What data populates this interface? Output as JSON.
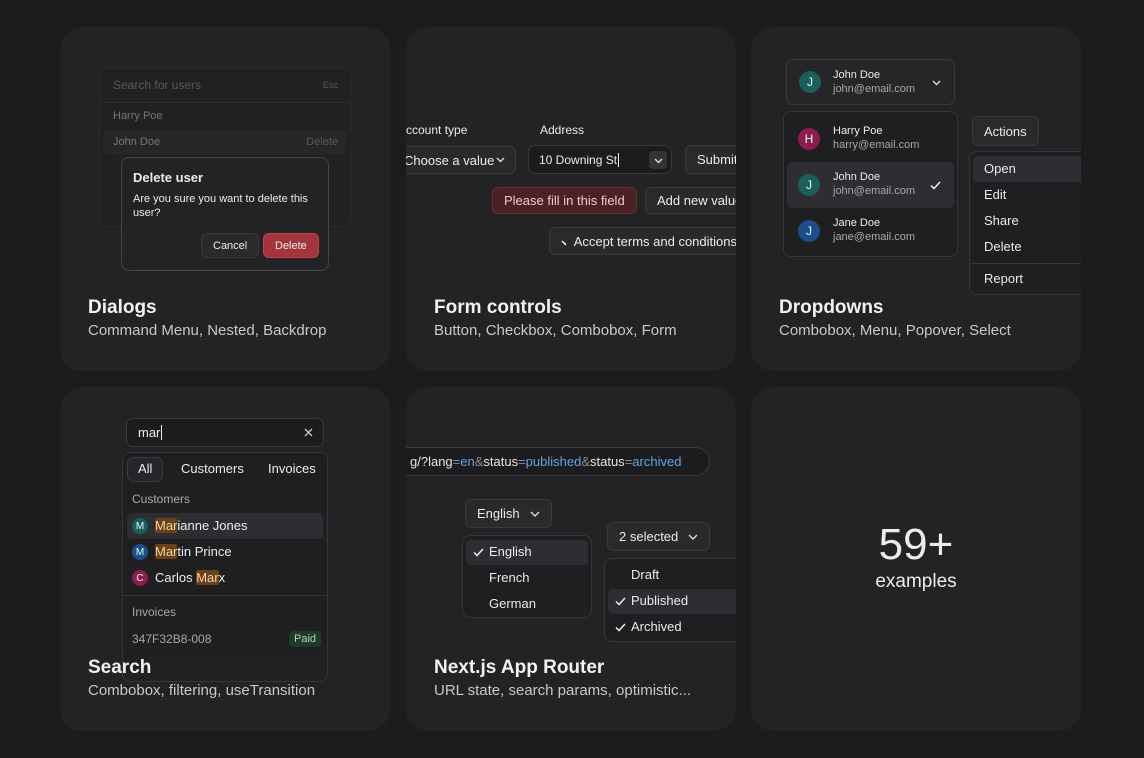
{
  "dialogs": {
    "title": "Dialogs",
    "subtitle": "Command Menu, Nested, Backdrop",
    "search_placeholder": "Search for users",
    "esc": "Esc",
    "users": [
      "Harry Poe",
      "John Doe"
    ],
    "row_action": "Delete",
    "dialog": {
      "title": "Delete user",
      "body": "Are you sure you want to delete this user?",
      "cancel": "Cancel",
      "confirm": "Delete"
    }
  },
  "forms": {
    "title": "Form controls",
    "subtitle": "Button, Checkbox, Combobox, Form",
    "account_label": "Account type",
    "account_placeholder": "Choose a value",
    "address_label": "Address",
    "address_value": "10 Downing St",
    "submit": "Submit",
    "error": "Please fill in this field",
    "add": "Add new value",
    "terms": "Accept terms and conditions"
  },
  "dropdowns": {
    "title": "Dropdowns",
    "subtitle": "Combobox, Menu, Popover, Select",
    "selected": {
      "initial": "J",
      "name": "John Doe",
      "email": "john@email.com"
    },
    "options": [
      {
        "initial": "H",
        "name": "Harry Poe",
        "email": "harry@email.com",
        "color": "#8b1e4e"
      },
      {
        "initial": "J",
        "name": "John Doe",
        "email": "john@email.com",
        "color": "#1b5e5a"
      },
      {
        "initial": "J",
        "name": "Jane Doe",
        "email": "jane@email.com",
        "color": "#1d4e89"
      }
    ],
    "actions": "Actions",
    "menu": [
      "Open",
      "Edit",
      "Share",
      "Delete",
      "Report"
    ]
  },
  "search": {
    "title": "Search",
    "subtitle": "Combobox, filtering, useTransition",
    "query": "mar",
    "tabs": [
      "All",
      "Customers",
      "Invoices"
    ],
    "customers_label": "Customers",
    "customers": [
      {
        "initial": "M",
        "parts": [
          "Mar",
          "ianne Jones"
        ],
        "hit": 0,
        "color": "#1b5e5a"
      },
      {
        "initial": "M",
        "parts": [
          "Mar",
          "tin Prince"
        ],
        "hit": 0,
        "color": "#1d4e89"
      },
      {
        "initial": "C",
        "parts": [
          "Carlos ",
          "Mar",
          "x"
        ],
        "hit": 1,
        "color": "#8b1e4e"
      }
    ],
    "invoices_label": "Invoices",
    "invoice": {
      "id": "347F32B8-008",
      "status": "Paid"
    }
  },
  "nextjs": {
    "title": "Next.js App Router",
    "subtitle": "URL state, search params, optimistic...",
    "url": [
      {
        "text": "g/?",
        "kind": "key"
      },
      {
        "text": "lang",
        "kind": "key"
      },
      {
        "text": "=",
        "kind": "sep"
      },
      {
        "text": "en",
        "kind": "val"
      },
      {
        "text": "&",
        "kind": "sep"
      },
      {
        "text": "status",
        "kind": "key"
      },
      {
        "text": "=",
        "kind": "sep"
      },
      {
        "text": "published",
        "kind": "val"
      },
      {
        "text": "&",
        "kind": "sep"
      },
      {
        "text": "status",
        "kind": "key"
      },
      {
        "text": "=",
        "kind": "sep"
      },
      {
        "text": "archived",
        "kind": "val"
      }
    ],
    "language": "English",
    "languages": [
      "English",
      "French",
      "German"
    ],
    "status": "2 selected",
    "statuses": [
      "Draft",
      "Published",
      "Archived"
    ]
  },
  "more": {
    "count": "59+",
    "label": "examples"
  }
}
